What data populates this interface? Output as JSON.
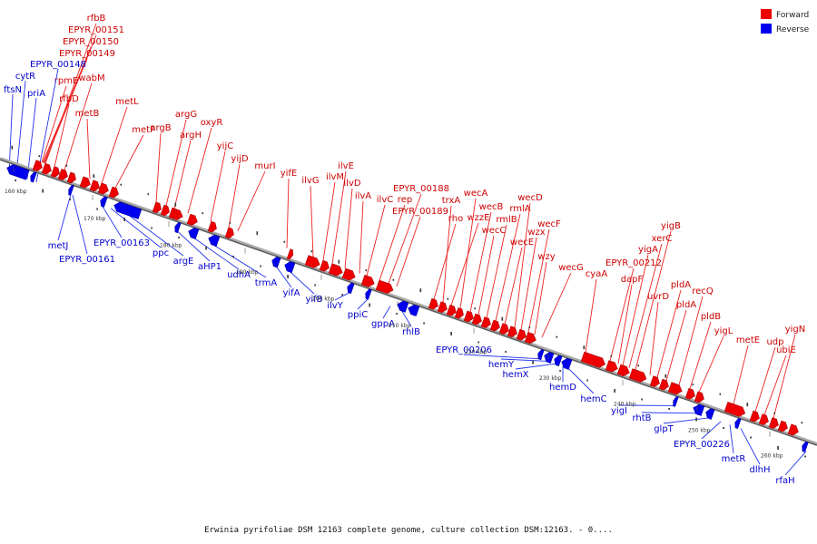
{
  "caption": "Erwinia pyrifoliae DSM 12163 complete genome, culture collection DSM:12163. - 0....",
  "legend": [
    {
      "label": "Forward",
      "color": "#ee0000"
    },
    {
      "label": "Reverse",
      "color": "#0000ee"
    }
  ],
  "colors": {
    "forward": "#ee0000",
    "reverse": "#0000ee",
    "forward_label": "#cc0000",
    "reverse_label": "#0000cc",
    "backbone": "#888888"
  },
  "ticks": [
    "160 kbp",
    "170 kbp",
    "180 kbp",
    "190 kbp",
    "200 kbp",
    "210 kbp",
    "220 kbp",
    "230 kbp",
    "240 kbp",
    "250 kbp",
    "260 kbp"
  ],
  "forward_genes": [
    "rfbB",
    "EPYR_00151",
    "EPYR_00150",
    "EPYR_00149",
    "rpmE",
    "wabM",
    "rfbD",
    "metB",
    "metL",
    "metF",
    "argB",
    "argG",
    "argH",
    "oxyR",
    "yijC",
    "yijD",
    "murI",
    "yifE",
    "ilvG",
    "ilvM",
    "ilvE",
    "ilvD",
    "ilvA",
    "ilvC",
    "rep",
    "EPYR_00188",
    "EPYR_00189",
    "rho",
    "trxA",
    "wzzE",
    "wecA",
    "wecB",
    "wecC",
    "rmlB",
    "rmlA",
    "wecE",
    "wecD",
    "wzx",
    "wecF",
    "wzy",
    "wecG",
    "cyaA",
    "EPYR_00212",
    "dapF",
    "yigA",
    "xerC",
    "yigB",
    "uvrD",
    "pldA",
    "pldA",
    "recQ",
    "pldB",
    "yigL",
    "metE",
    "udp",
    "ubiE",
    "yigN"
  ],
  "reverse_genes": [
    "ftsN",
    "cytR",
    "priA",
    "EPYR_00148",
    "metJ",
    "EPYR_00161",
    "EPYR_00163",
    "ppc",
    "argE",
    "aHP1",
    "udhA",
    "trmA",
    "yifA",
    "yifB",
    "ilvY",
    "ppiC",
    "gppA",
    "rhlB",
    "EPYR_00206",
    "hemY",
    "hemX",
    "hemD",
    "hemC",
    "yigI",
    "rhtB",
    "glpT",
    "EPYR_00226",
    "metR",
    "dlhH",
    "rfaH"
  ]
}
